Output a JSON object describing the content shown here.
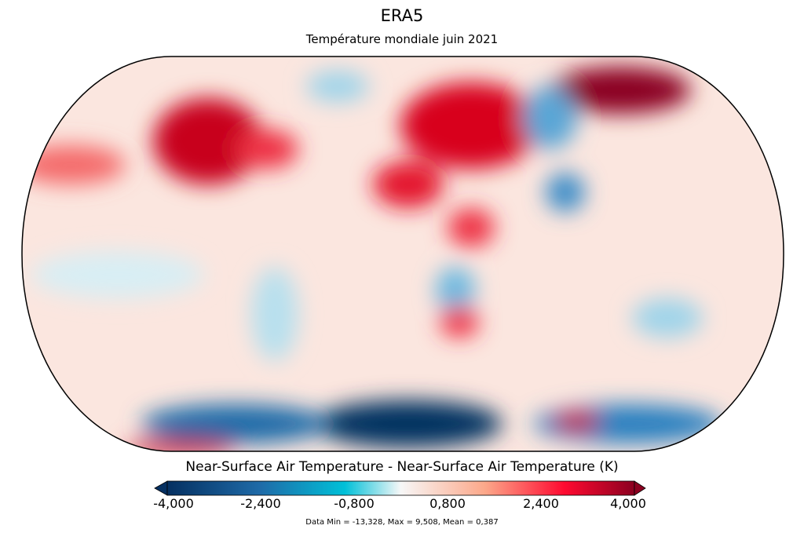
{
  "title": "ERA5",
  "subtitle": "Température mondiale juin 2021",
  "colorbar": {
    "label": "Near-Surface Air Temperature - Near-Surface Air Temperature (K)",
    "ticks": [
      "-4,000",
      "-2,400",
      "-0,800",
      "0,800",
      "2,400",
      "4,000"
    ],
    "range": [
      -4,
      4
    ],
    "extend": "both",
    "colormap": [
      "#053061",
      "#1f6ba8",
      "#00c0d8",
      "#f7f7f7",
      "#fca88a",
      "#ff0a30",
      "#8b0020"
    ]
  },
  "stats": "Data Min = -13,328, Max = 9,508, Mean = 0,387",
  "map": {
    "projection": "equal-earth",
    "coastlines": true
  }
}
